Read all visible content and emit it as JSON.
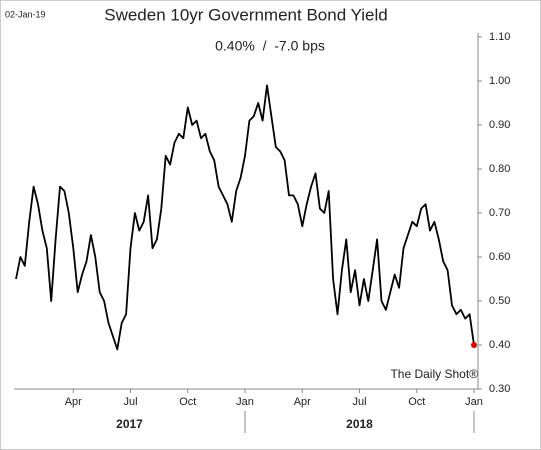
{
  "chart_data": {
    "type": "line",
    "date_stamp": "02-Jan-19",
    "title": "Sweden 10yr Government Bond Yield",
    "subtitle": "0.40%  /  -7.0 bps",
    "source": "The Daily Shot®",
    "categories": [
      null,
      null,
      null,
      null,
      null,
      null,
      null,
      null,
      null,
      null,
      null,
      null,
      null,
      "Apr",
      null,
      null,
      null,
      null,
      null,
      null,
      null,
      null,
      null,
      null,
      null,
      null,
      "Jul",
      null,
      null,
      null,
      null,
      null,
      null,
      null,
      null,
      null,
      null,
      null,
      null,
      "Oct",
      null,
      null,
      null,
      null,
      null,
      null,
      null,
      null,
      null,
      null,
      null,
      null,
      "Jan",
      null,
      null,
      null,
      null,
      null,
      null,
      null,
      null,
      null,
      null,
      null,
      null,
      "Apr",
      null,
      null,
      null,
      null,
      null,
      null,
      null,
      null,
      null,
      null,
      null,
      null,
      "Jul",
      null,
      null,
      null,
      null,
      null,
      null,
      null,
      null,
      null,
      null,
      null,
      null,
      "Oct",
      null,
      null,
      null,
      null,
      null,
      null,
      null,
      null,
      null,
      null,
      null,
      null,
      "Jan"
    ],
    "x_group_labels": [
      "2017",
      "2018"
    ],
    "series": [
      {
        "color": "#000000",
        "last_point_color": "#e00000",
        "values": [
          0.55,
          0.6,
          0.58,
          0.68,
          0.76,
          0.72,
          0.66,
          0.62,
          0.5,
          0.64,
          0.76,
          0.75,
          0.7,
          0.62,
          0.52,
          0.56,
          0.59,
          0.65,
          0.6,
          0.52,
          0.5,
          0.45,
          0.42,
          0.39,
          0.45,
          0.47,
          0.62,
          0.7,
          0.66,
          0.68,
          0.74,
          0.62,
          0.64,
          0.71,
          0.83,
          0.81,
          0.86,
          0.88,
          0.87,
          0.94,
          0.9,
          0.91,
          0.87,
          0.88,
          0.84,
          0.82,
          0.76,
          0.74,
          0.72,
          0.68,
          0.75,
          0.78,
          0.83,
          0.91,
          0.92,
          0.95,
          0.91,
          0.99,
          0.92,
          0.85,
          0.84,
          0.82,
          0.74,
          0.74,
          0.72,
          0.67,
          0.72,
          0.76,
          0.79,
          0.71,
          0.7,
          0.75,
          0.55,
          0.47,
          0.57,
          0.64,
          0.52,
          0.57,
          0.49,
          0.55,
          0.5,
          0.57,
          0.64,
          0.5,
          0.48,
          0.52,
          0.56,
          0.53,
          0.62,
          0.65,
          0.68,
          0.67,
          0.71,
          0.72,
          0.66,
          0.68,
          0.64,
          0.59,
          0.57,
          0.49,
          0.47,
          0.48,
          0.46,
          0.47,
          0.4
        ]
      }
    ],
    "ylim": [
      0.3,
      1.1
    ],
    "yticks": [
      {
        "value": 0.3,
        "label": "0.30"
      },
      {
        "value": 0.4,
        "label": "0.40"
      },
      {
        "value": 0.5,
        "label": "0.50"
      },
      {
        "value": 0.6,
        "label": "0.60"
      },
      {
        "value": 0.7,
        "label": "0.70"
      },
      {
        "value": 0.8,
        "label": "0.80"
      },
      {
        "value": 0.9,
        "label": "0.90"
      },
      {
        "value": 1.0,
        "label": "1.00"
      },
      {
        "value": 1.1,
        "label": "1.10"
      }
    ],
    "grid": false
  }
}
